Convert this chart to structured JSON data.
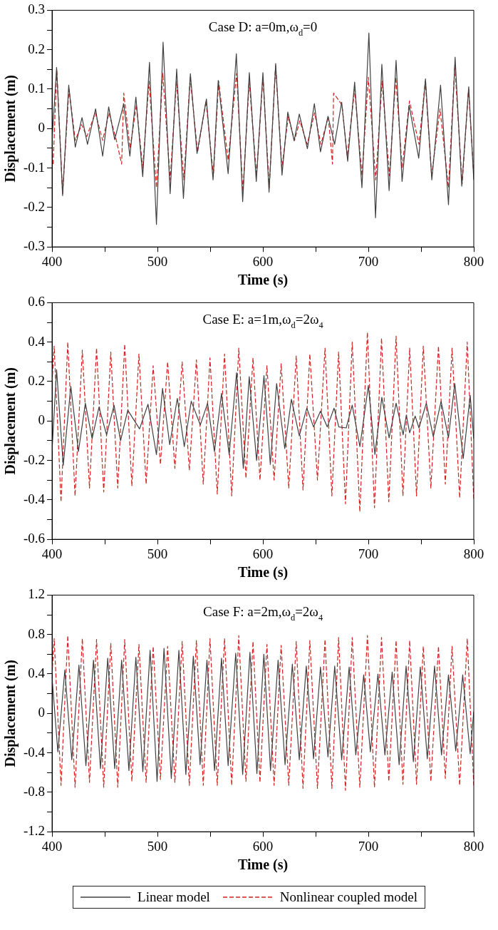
{
  "chart_data": [
    {
      "type": "line",
      "title": "Case D: a=0m,ω$_{d}$=0",
      "xlabel": "Time (s)",
      "ylabel": "Displacement (m)",
      "xlim": [
        400,
        800
      ],
      "xticks": [
        400,
        {
          "value": 450,
          "label": null
        },
        500,
        {
          "value": 550,
          "label": null
        },
        600,
        {
          "value": 650,
          "label": null
        },
        700,
        {
          "value": 750,
          "label": null
        },
        800
      ],
      "ylim": [
        -0.3,
        0.3
      ],
      "yticks": [
        -0.3,
        {
          "value": -0.25,
          "label": null
        },
        -0.2,
        {
          "value": -0.15,
          "label": null
        },
        -0.1,
        {
          "value": -0.05,
          "label": null
        },
        0,
        {
          "value": 0.05,
          "label": null
        },
        0.1,
        {
          "value": 0.15,
          "label": null
        },
        0.2,
        {
          "value": 0.25,
          "label": null
        },
        0.3
      ],
      "grid": false,
      "legend": false,
      "marker": "none",
      "series": [
        {
          "color": "#404040",
          "line_style": "solid",
          "x": [
            400,
            404.3,
            410,
            415.8,
            422,
            428.4,
            433.6,
            441.3,
            448,
            453.7,
            459.4,
            468,
            473.8,
            479.5,
            486,
            492.4,
            499,
            505.3,
            512,
            518.2,
            524.6,
            531.2,
            537.5,
            546.4,
            552.7,
            557.6,
            567,
            574.8,
            580.8,
            587.1,
            593.7,
            600,
            605.8,
            612.1,
            618.1,
            623.6,
            629.6,
            634.5,
            642.2,
            648.8,
            654.6,
            661.7,
            668,
            674.7,
            680.4,
            687,
            693.9,
            700.5,
            706.8,
            712.8,
            719.7,
            726.3,
            732,
            738.7,
            747.8,
            754.2,
            760.2,
            768.5,
            776,
            782.3,
            788.6,
            795.2,
            800
          ],
          "values": [
            -0.03,
            0.155,
            -0.17,
            0.11,
            -0.047,
            0.028,
            -0.04,
            0.05,
            -0.07,
            0.055,
            -0.028,
            0.063,
            -0.07,
            0.08,
            -0.122,
            0.168,
            -0.243,
            0.219,
            -0.165,
            0.151,
            -0.177,
            0.139,
            -0.063,
            0.075,
            -0.13,
            0.122,
            -0.114,
            0.19,
            -0.185,
            0.142,
            -0.134,
            0.142,
            -0.161,
            0.165,
            -0.118,
            0.042,
            -0.031,
            0.037,
            -0.051,
            0.063,
            -0.059,
            0.031,
            -0.04,
            0.067,
            -0.083,
            0.118,
            -0.15,
            0.242,
            -0.226,
            0.163,
            -0.157,
            0.173,
            -0.134,
            0.059,
            -0.075,
            0.126,
            -0.13,
            0.11,
            -0.193,
            0.181,
            -0.146,
            0.106,
            -0.13
          ]
        },
        {
          "color": "#d42020",
          "line_style": "dashed",
          "x": [
            401,
            404.5,
            410,
            416,
            422,
            428,
            433,
            441,
            448,
            454,
            461,
            466,
            468,
            474,
            480,
            486,
            492,
            499,
            505,
            512,
            518,
            525,
            531,
            538,
            546,
            553,
            558,
            567,
            575,
            581,
            587,
            594,
            600,
            606,
            612,
            618,
            624,
            630,
            635,
            642,
            649,
            655,
            662,
            666,
            667,
            675,
            680,
            687,
            694,
            700,
            707,
            713,
            720,
            726,
            732,
            739,
            748,
            754,
            760,
            768,
            776,
            782,
            789,
            795,
            800
          ],
          "values": [
            -0.09,
            0.15,
            -0.165,
            0.1,
            -0.03,
            0.01,
            -0.02,
            0.04,
            -0.03,
            0.04,
            -0.03,
            -0.09,
            0.09,
            -0.05,
            0.06,
            -0.1,
            0.12,
            -0.15,
            0.14,
            -0.13,
            0.12,
            -0.13,
            0.13,
            -0.06,
            0.07,
            -0.12,
            0.12,
            -0.08,
            0.14,
            -0.16,
            0.12,
            -0.12,
            0.13,
            -0.15,
            0.16,
            -0.1,
            0.03,
            -0.03,
            0.02,
            -0.04,
            0.04,
            -0.04,
            0.03,
            -0.09,
            0.09,
            0.06,
            -0.07,
            0.1,
            -0.12,
            0.13,
            -0.13,
            0.12,
            -0.12,
            0.13,
            -0.1,
            0.07,
            -0.04,
            0.12,
            -0.12,
            0.05,
            -0.15,
            0.16,
            -0.14,
            0.1,
            -0.12
          ]
        }
      ]
    },
    {
      "type": "line",
      "title": "Case E: a=1m,ω$_{d}$=2ω$_{4}$",
      "xlabel": "Time (s)",
      "ylabel": "Displacement (m)",
      "xlim": [
        400,
        800
      ],
      "xticks": [
        400,
        {
          "value": 450,
          "label": null
        },
        500,
        {
          "value": 550,
          "label": null
        },
        600,
        {
          "value": 650,
          "label": null
        },
        700,
        {
          "value": 750,
          "label": null
        },
        800
      ],
      "ylim": [
        -0.6,
        0.6
      ],
      "yticks": [
        -0.6,
        {
          "value": -0.5,
          "label": null
        },
        -0.4,
        {
          "value": -0.3,
          "label": null
        },
        -0.2,
        {
          "value": -0.1,
          "label": null
        },
        0,
        {
          "value": 0.1,
          "label": null
        },
        0.2,
        {
          "value": 0.3,
          "label": null
        },
        0.4,
        {
          "value": 0.5,
          "label": null
        },
        0.6
      ],
      "grid": false,
      "legend": false,
      "marker": "none",
      "series": [
        {
          "color": "#404040",
          "line_style": "solid",
          "x": [
            400,
            404.3,
            410.6,
            417.8,
            425,
            431.6,
            438,
            444.5,
            451.7,
            458.8,
            465,
            471.8,
            483,
            491,
            499,
            504.8,
            511.6,
            518.8,
            525.4,
            532,
            540.6,
            547.5,
            554,
            560.7,
            568,
            575,
            581.4,
            587,
            594,
            601,
            607,
            613,
            620.7,
            627,
            634.5,
            641.6,
            648,
            654.6,
            661,
            667.5,
            672,
            679,
            684.7,
            692,
            700,
            706.2,
            712.8,
            719.7,
            726.3,
            733,
            736,
            739.2,
            744.4,
            748,
            755,
            761.6,
            769,
            776,
            782,
            790,
            796.6,
            800
          ],
          "values": [
            -0.15,
            0.26,
            -0.225,
            0.175,
            -0.155,
            0.09,
            -0.09,
            0.07,
            -0.07,
            0.08,
            -0.1,
            0.055,
            -0.04,
            0.085,
            -0.17,
            0.165,
            -0.12,
            0.115,
            -0.13,
            0.1,
            -0.02,
            0.09,
            -0.155,
            0.14,
            -0.17,
            0.245,
            -0.24,
            0.225,
            -0.2,
            0.23,
            -0.22,
            0.19,
            -0.14,
            0.11,
            -0.075,
            0.065,
            -0.03,
            0.05,
            -0.03,
            0.065,
            -0.03,
            -0.035,
            0.08,
            -0.13,
            0.18,
            -0.17,
            0.12,
            -0.085,
            0.09,
            -0.07,
            0.03,
            -0.06,
            0.025,
            -0.035,
            0.09,
            -0.08,
            0.1,
            -0.085,
            0.19,
            -0.19,
            0.13,
            -0.09
          ]
        },
        {
          "color": "#d42020",
          "line_style": "dashed",
          "x": [
            400,
            402,
            408.5,
            414.9,
            421.8,
            428.7,
            435.5,
            442.2,
            449,
            455.7,
            462.3,
            468.9,
            475.7,
            482.4,
            489.2,
            495.9,
            502.8,
            509.6,
            516.5,
            523.4,
            530.2,
            536.9,
            543.4,
            549.8,
            556.7,
            563.6,
            570.4,
            577.1,
            583.9,
            590.6,
            597.2,
            603.8,
            610.6,
            617.3,
            624.5,
            631.6,
            638,
            644.5,
            651.7,
            658.9,
            665.4,
            671.8,
            678.3,
            684.7,
            691.9,
            699.1,
            705.8,
            712.5,
            719.4,
            726.3,
            732.8,
            739.2,
            745.7,
            752.1,
            759.3,
            766.5,
            773,
            779.4,
            786.6,
            793.8,
            800
          ],
          "values": [
            0.2,
            0.38,
            -0.41,
            0.4,
            -0.38,
            0.36,
            -0.34,
            0.37,
            -0.36,
            0.35,
            -0.34,
            0.39,
            -0.33,
            0.34,
            -0.32,
            0.28,
            -0.22,
            0.3,
            -0.24,
            0.3,
            -0.25,
            0.31,
            -0.32,
            0.32,
            -0.37,
            0.34,
            -0.38,
            0.37,
            -0.29,
            0.32,
            -0.3,
            0.28,
            -0.3,
            0.29,
            -0.34,
            0.33,
            -0.35,
            0.34,
            -0.3,
            0.37,
            -0.38,
            0.35,
            -0.42,
            0.4,
            -0.46,
            0.45,
            -0.44,
            0.42,
            -0.41,
            0.43,
            -0.38,
            0.37,
            -0.38,
            0.38,
            -0.34,
            0.38,
            -0.32,
            0.37,
            -0.39,
            0.4,
            -0.4
          ]
        }
      ]
    },
    {
      "type": "line",
      "title": "Case F: a=2m,ω$_{d}$=2ω$_{4}$",
      "xlabel": "Time (s)",
      "ylabel": "Displacement (m)",
      "xlim": [
        400,
        800
      ],
      "xticks": [
        400,
        {
          "value": 450,
          "label": null
        },
        500,
        {
          "value": 550,
          "label": null
        },
        600,
        {
          "value": 650,
          "label": null
        },
        700,
        {
          "value": 750,
          "label": null
        },
        800
      ],
      "ylim": [
        -1.2,
        1.2
      ],
      "yticks": [
        -1.2,
        {
          "value": -1.0,
          "label": null
        },
        -0.8,
        {
          "value": -0.6,
          "label": null
        },
        -0.4,
        {
          "value": -0.2,
          "label": null
        },
        0,
        {
          "value": 0.2,
          "label": null
        },
        0.4,
        {
          "value": 0.6,
          "label": null
        },
        0.8,
        {
          "value": 1.0,
          "label": null
        },
        1.2
      ],
      "grid": false,
      "legend": "bottom",
      "marker": "none",
      "series": [
        {
          "name": "Linear model",
          "color": "#404040",
          "line_style": "solid",
          "x": [
            400,
            405.5,
            412.1,
            418.7,
            425.5,
            432.1,
            439.3,
            445.9,
            452.8,
            459.4,
            466,
            472.9,
            479.5,
            486.1,
            493,
            499.6,
            506.2,
            513.1,
            520.3,
            526.9,
            534,
            540.4,
            546.9,
            554.1,
            560.7,
            567,
            574.2,
            580.8,
            587.7,
            594.3,
            600.9,
            607.2,
            614.4,
            621,
            627.9,
            634.5,
            641.1,
            648,
            654.6,
            661.7,
            668.1,
            674.7,
            681.8,
            688.1,
            695.6,
            701.9,
            709.1,
            715.7,
            722.6,
            729.2,
            735.8,
            742.7,
            749.3,
            755.9,
            762.8,
            769.4,
            776,
            782.9,
            789.5,
            796.6,
            800
          ],
          "values": [
            0.36,
            -0.39,
            0.44,
            -0.47,
            0.49,
            -0.53,
            0.54,
            -0.56,
            0.56,
            -0.56,
            0.54,
            -0.58,
            0.57,
            -0.59,
            0.64,
            -0.69,
            0.66,
            -0.66,
            0.64,
            -0.62,
            0.58,
            -0.52,
            0.54,
            -0.58,
            0.56,
            -0.53,
            0.61,
            -0.62,
            0.62,
            -0.61,
            0.6,
            -0.58,
            0.54,
            -0.52,
            0.5,
            -0.47,
            0.48,
            -0.46,
            0.47,
            -0.44,
            0.48,
            -0.47,
            0.47,
            -0.42,
            0.39,
            -0.39,
            0.4,
            -0.42,
            0.42,
            -0.52,
            0.48,
            -0.49,
            0.47,
            -0.46,
            0.48,
            -0.42,
            0.39,
            -0.38,
            0.39,
            -0.41,
            0.02
          ]
        },
        {
          "name": "Nonlinear coupled model",
          "color": "#d42020",
          "line_style": "dashed",
          "x": [
            400,
            402,
            408.5,
            414.9,
            421.8,
            428.7,
            435.5,
            442.2,
            449,
            455.7,
            462.3,
            468.9,
            475.7,
            482.4,
            489.2,
            495.9,
            502.8,
            509.6,
            516.5,
            523.4,
            530.2,
            536.9,
            543.4,
            549.8,
            556.7,
            563.6,
            570.4,
            577.1,
            583.9,
            590.6,
            597.2,
            603.8,
            610.6,
            617.3,
            624.5,
            631.6,
            638,
            644.5,
            651.7,
            658.9,
            665.4,
            671.8,
            678.3,
            684.7,
            691.9,
            699.1,
            705.8,
            712.5,
            719.4,
            726.3,
            732.8,
            739.2,
            745.7,
            752.1,
            759.3,
            766.5,
            773,
            779.4,
            786.6,
            793.8,
            800
          ],
          "values": [
            0.4,
            0.76,
            -0.73,
            0.79,
            -0.75,
            0.76,
            -0.7,
            0.75,
            -0.75,
            0.71,
            -0.75,
            0.75,
            -0.69,
            0.7,
            -0.7,
            0.68,
            -0.67,
            0.68,
            -0.7,
            0.73,
            -0.73,
            0.74,
            -0.73,
            0.76,
            -0.73,
            0.76,
            -0.73,
            0.79,
            -0.69,
            0.73,
            -0.7,
            0.7,
            -0.73,
            0.69,
            -0.73,
            0.73,
            -0.76,
            0.74,
            -0.76,
            0.75,
            -0.76,
            0.77,
            -0.78,
            0.77,
            -0.75,
            0.79,
            -0.75,
            0.77,
            -0.69,
            0.74,
            -0.72,
            0.74,
            -0.72,
            0.68,
            -0.69,
            0.68,
            -0.66,
            0.68,
            -0.73,
            0.76,
            -0.73
          ]
        }
      ]
    }
  ]
}
